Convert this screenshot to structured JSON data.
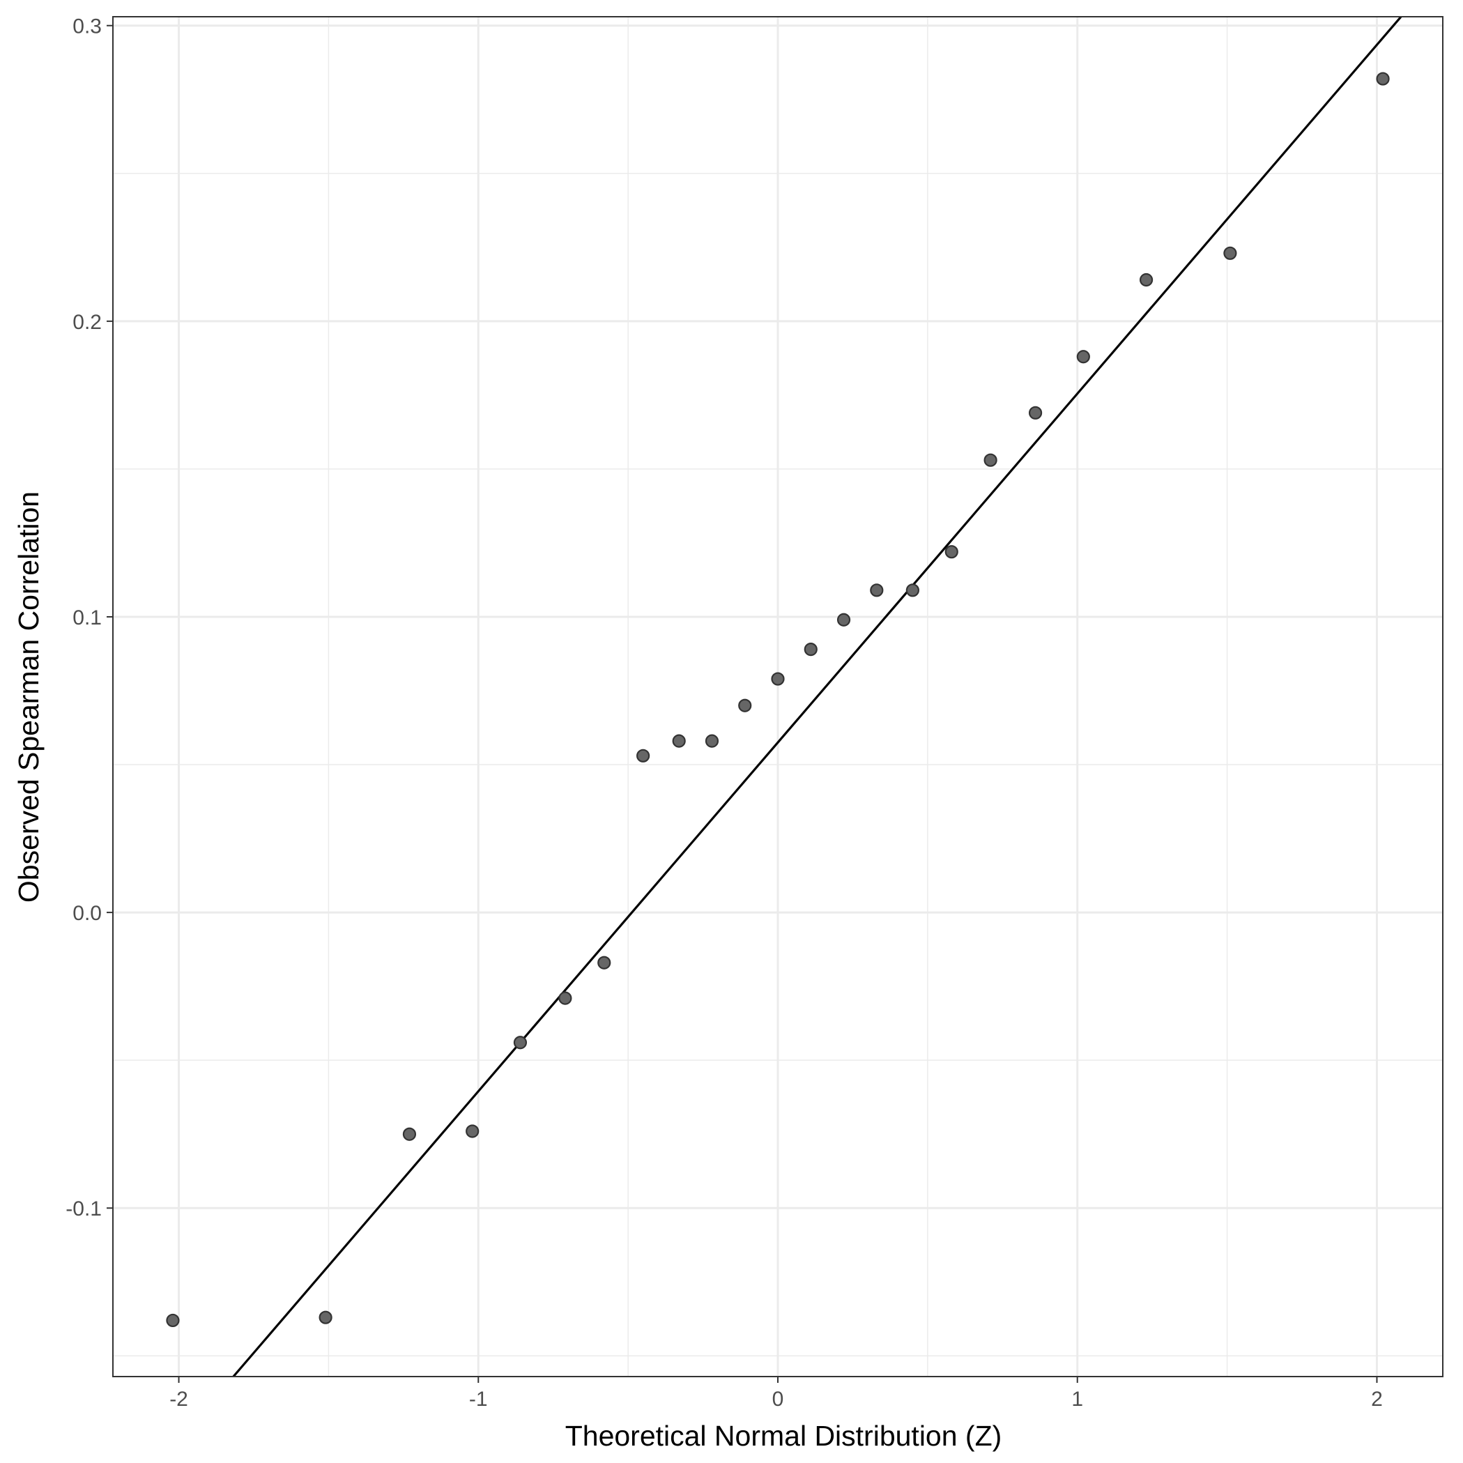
{
  "chart_data": {
    "type": "scatter",
    "title": "",
    "xlabel": "Theoretical Normal Distribution (Z)",
    "ylabel": "Observed Spearman Correlation",
    "xlim": [
      -2.22,
      2.22
    ],
    "ylim": [
      -0.157,
      0.303
    ],
    "x_ticks": [
      -2,
      -1,
      0,
      1,
      2
    ],
    "x_tick_labels": [
      "-2",
      "-1",
      "0",
      "1",
      "2"
    ],
    "y_ticks": [
      -0.1,
      0.0,
      0.1,
      0.2,
      0.3
    ],
    "y_tick_labels": [
      "-0.1",
      "0.0",
      "0.1",
      "0.2",
      "0.3"
    ],
    "y_minor_ticks": [
      -0.15,
      -0.05,
      0.05,
      0.15,
      0.25
    ],
    "x_minor_ticks": [
      -1.5,
      -0.5,
      0.5,
      1.5
    ],
    "grid": true,
    "legend": "none",
    "points": {
      "x": [
        -2.02,
        -1.51,
        -1.23,
        -1.02,
        -0.86,
        -0.71,
        -0.58,
        -0.45,
        -0.33,
        -0.22,
        -0.11,
        0.0,
        0.11,
        0.22,
        0.33,
        0.45,
        0.58,
        0.71,
        0.86,
        1.02,
        1.23,
        1.51,
        2.02
      ],
      "y": [
        -0.138,
        -0.137,
        -0.075,
        -0.074,
        -0.044,
        -0.029,
        -0.017,
        0.053,
        0.058,
        0.058,
        0.07,
        0.079,
        0.089,
        0.099,
        0.109,
        0.109,
        0.122,
        0.153,
        0.169,
        0.188,
        0.214,
        0.223,
        0.282
      ]
    },
    "reference_line": {
      "intercept": 0.0575,
      "slope": 0.118
    },
    "colors": {
      "point_fill": "#666666",
      "point_stroke": "#333333",
      "line": "#000000",
      "grid": "#ebebeb",
      "panel_border": "#333333",
      "background": "#ffffff"
    }
  }
}
